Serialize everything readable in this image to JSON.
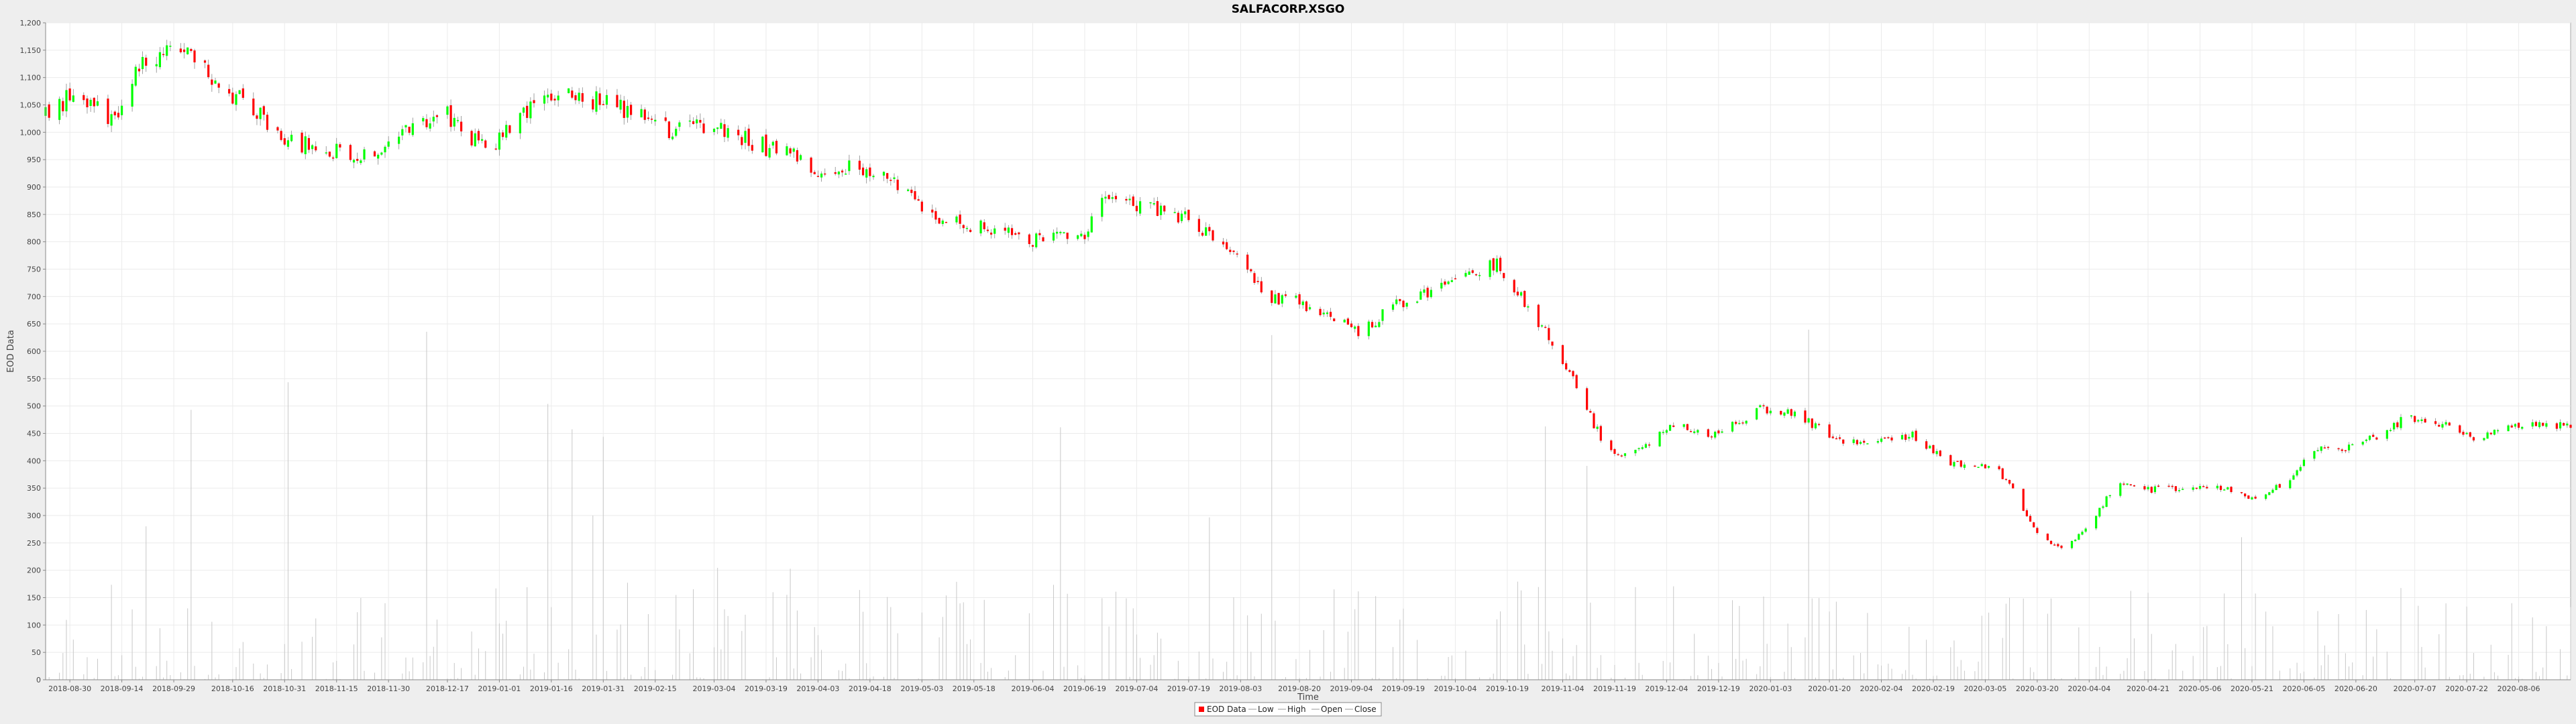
{
  "chart_data": {
    "type": "candlestick",
    "title": "SALFACORP.XSGO",
    "xlabel": "Time",
    "ylabel": "EOD Data",
    "ylim": [
      0,
      1200
    ],
    "y_ticks": [
      0,
      50,
      100,
      150,
      200,
      250,
      300,
      350,
      400,
      450,
      500,
      550,
      600,
      650,
      700,
      750,
      800,
      850,
      900,
      950,
      1000,
      1050,
      1100,
      1150,
      1200
    ],
    "y_tick_labels": [
      "0",
      "50",
      "100",
      "150",
      "200",
      "250",
      "300",
      "350",
      "400",
      "450",
      "500",
      "550",
      "600",
      "650",
      "700",
      "750",
      "800",
      "850",
      "900",
      "950",
      "1,000",
      "1,050",
      "1,100",
      "1,150",
      "1,200"
    ],
    "x_range": [
      "2018-08-23",
      "2020-08-21"
    ],
    "x_ticks": [
      "2018-08-30",
      "2018-09-14",
      "2018-09-29",
      "2018-10-16",
      "2018-10-31",
      "2018-11-15",
      "2018-11-30",
      "2018-12-17",
      "2019-01-01",
      "2019-01-16",
      "2019-01-31",
      "2019-02-15",
      "2019-03-04",
      "2019-03-19",
      "2019-04-03",
      "2019-04-18",
      "2019-05-03",
      "2019-05-18",
      "2019-06-04",
      "2019-06-19",
      "2019-07-04",
      "2019-07-19",
      "2019-08-03",
      "2019-08-20",
      "2019-09-04",
      "2019-09-19",
      "2019-10-04",
      "2019-10-19",
      "2019-11-04",
      "2019-11-19",
      "2019-12-04",
      "2019-12-19",
      "2020-01-03",
      "2020-01-20",
      "2020-02-04",
      "2020-02-19",
      "2020-03-05",
      "2020-03-20",
      "2020-04-04",
      "2020-04-21",
      "2020-05-06",
      "2020-05-21",
      "2020-06-05",
      "2020-06-20",
      "2020-07-07",
      "2020-07-22",
      "2020-08-06"
    ],
    "grid": true,
    "legend_position": "bottom-center",
    "legend": [
      "EOD Data",
      "Low",
      "High",
      "Open",
      "Close"
    ],
    "colors": {
      "up": "#00ff00",
      "down": "#ff0000",
      "wick": "#888888",
      "volume": "#c8c8c8",
      "grid": "#ebebeb",
      "plot_bg": "#ffffff"
    },
    "price_anchors": [
      [
        "2018-08-23",
        1030
      ],
      [
        "2018-09-01",
        1075
      ],
      [
        "2018-09-08",
        1040
      ],
      [
        "2018-09-12",
        1020
      ],
      [
        "2018-09-18",
        1120
      ],
      [
        "2018-09-25",
        1140
      ],
      [
        "2018-09-30",
        1150
      ],
      [
        "2018-10-06",
        1130
      ],
      [
        "2018-10-14",
        1080
      ],
      [
        "2018-10-24",
        1030
      ],
      [
        "2018-10-31",
        990
      ],
      [
        "2018-11-07",
        975
      ],
      [
        "2018-11-15",
        968
      ],
      [
        "2018-11-22",
        962
      ],
      [
        "2018-11-30",
        980
      ],
      [
        "2018-12-10",
        1025
      ],
      [
        "2018-12-17",
        1030
      ],
      [
        "2018-12-24",
        990
      ],
      [
        "2018-12-31",
        980
      ],
      [
        "2019-01-10",
        1040
      ],
      [
        "2019-01-20",
        1065
      ],
      [
        "2019-01-31",
        1055
      ],
      [
        "2019-02-10",
        1035
      ],
      [
        "2019-02-20",
        1000
      ],
      [
        "2019-03-04",
        1010
      ],
      [
        "2019-03-12",
        990
      ],
      [
        "2019-03-20",
        970
      ],
      [
        "2019-03-27",
        955
      ],
      [
        "2019-04-03",
        935
      ],
      [
        "2019-04-12",
        935
      ],
      [
        "2019-04-20",
        920
      ],
      [
        "2019-04-28",
        895
      ],
      [
        "2019-05-06",
        855
      ],
      [
        "2019-05-12",
        832
      ],
      [
        "2019-05-20",
        830
      ],
      [
        "2019-05-27",
        820
      ],
      [
        "2019-06-04",
        805
      ],
      [
        "2019-06-12",
        808
      ],
      [
        "2019-06-19",
        818
      ],
      [
        "2019-06-25",
        890
      ],
      [
        "2019-07-04",
        865
      ],
      [
        "2019-07-12",
        855
      ],
      [
        "2019-07-20",
        838
      ],
      [
        "2019-07-28",
        805
      ],
      [
        "2019-08-03",
        758
      ],
      [
        "2019-08-12",
        700
      ],
      [
        "2019-08-20",
        690
      ],
      [
        "2019-08-30",
        660
      ],
      [
        "2019-09-06",
        630
      ],
      [
        "2019-09-15",
        680
      ],
      [
        "2019-09-24",
        700
      ],
      [
        "2019-10-02",
        720
      ],
      [
        "2019-10-10",
        740
      ],
      [
        "2019-10-16",
        760
      ],
      [
        "2019-10-24",
        690
      ],
      [
        "2019-10-31",
        625
      ],
      [
        "2019-11-06",
        560
      ],
      [
        "2019-11-12",
        480
      ],
      [
        "2019-11-16",
        430
      ],
      [
        "2019-11-21",
        410
      ],
      [
        "2019-11-29",
        435
      ],
      [
        "2019-12-06",
        470
      ],
      [
        "2019-12-19",
        445
      ],
      [
        "2019-12-30",
        495
      ],
      [
        "2020-01-05",
        495
      ],
      [
        "2020-01-12",
        480
      ],
      [
        "2020-01-20",
        445
      ],
      [
        "2020-01-28",
        430
      ],
      [
        "2020-02-04",
        438
      ],
      [
        "2020-02-13",
        448
      ],
      [
        "2020-02-22",
        400
      ],
      [
        "2020-03-01",
        390
      ],
      [
        "2020-03-08",
        388
      ],
      [
        "2020-03-14",
        335
      ],
      [
        "2020-03-20",
        270
      ],
      [
        "2020-03-26",
        240
      ],
      [
        "2020-04-01",
        262
      ],
      [
        "2020-04-07",
        310
      ],
      [
        "2020-04-12",
        360
      ],
      [
        "2020-04-19",
        345
      ],
      [
        "2020-04-27",
        350
      ],
      [
        "2020-05-05",
        352
      ],
      [
        "2020-05-13",
        348
      ],
      [
        "2020-05-21",
        330
      ],
      [
        "2020-05-31",
        360
      ],
      [
        "2020-06-08",
        420
      ],
      [
        "2020-06-15",
        420
      ],
      [
        "2020-06-24",
        440
      ],
      [
        "2020-06-30",
        455
      ],
      [
        "2020-07-04",
        480
      ],
      [
        "2020-07-10",
        470
      ],
      [
        "2020-07-17",
        470
      ],
      [
        "2020-07-24",
        440
      ],
      [
        "2020-08-01",
        465
      ],
      [
        "2020-08-08",
        465
      ],
      [
        "2020-08-14",
        470
      ],
      [
        "2020-08-21",
        460
      ]
    ],
    "volume_range": [
      0,
      180
    ]
  }
}
